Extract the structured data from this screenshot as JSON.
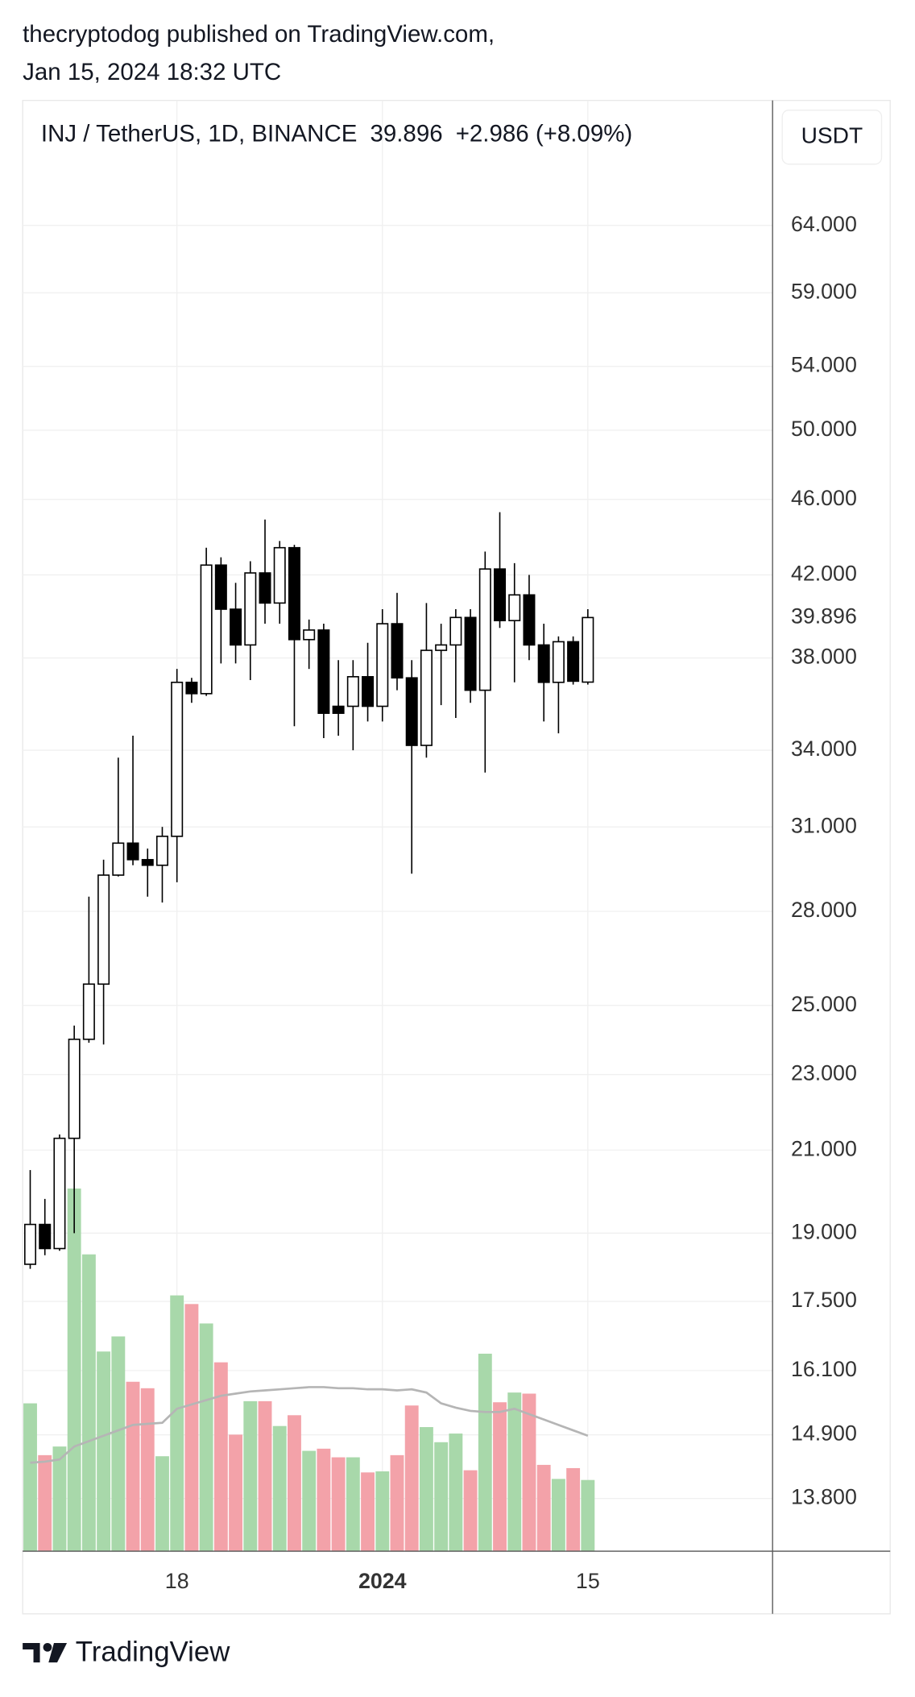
{
  "header": {
    "author_line": "thecryptodog published on TradingView.com,",
    "date": "Jan 15, 2024 18:32 UTC"
  },
  "chart_data": {
    "type": "candlestick",
    "symbol": "INJ / TetherUS, 1D, BINANCE",
    "change": "+2.986 (+8.09%)",
    "currency": "USDT",
    "categories": [
      null,
      null,
      null,
      null,
      null,
      null,
      null,
      null,
      null,
      null,
      "18",
      null,
      null,
      null,
      null,
      null,
      null,
      null,
      null,
      null,
      null,
      null,
      null,
      null,
      "2024",
      null,
      null,
      null,
      null,
      null,
      null,
      null,
      null,
      null,
      null,
      null,
      null,
      null,
      "15"
    ],
    "open": [
      18.3,
      19.2,
      18.65,
      21.3,
      24.0,
      25.65,
      29.25,
      30.4,
      29.8,
      29.6,
      30.65,
      36.9,
      36.4,
      42.5,
      40.3,
      38.6,
      42.1,
      40.6,
      43.4,
      38.85,
      39.3,
      35.85,
      35.85,
      37.15,
      35.85,
      39.6,
      37.1,
      34.2,
      38.35,
      38.6,
      39.9,
      36.55,
      42.3,
      39.75,
      41.0,
      38.6,
      36.9,
      38.75,
      36.91
    ],
    "high": [
      20.5,
      19.8,
      21.4,
      24.4,
      28.5,
      29.8,
      33.7,
      34.6,
      30.2,
      31.0,
      37.5,
      37.1,
      43.4,
      42.9,
      41.6,
      42.7,
      44.9,
      43.75,
      43.55,
      39.8,
      39.6,
      37.9,
      37.9,
      38.7,
      40.3,
      41.1,
      37.9,
      40.6,
      39.6,
      40.3,
      40.3,
      43.2,
      45.3,
      42.6,
      42.0,
      39.6,
      39.0,
      39.0,
      40.3
    ],
    "low": [
      18.2,
      18.5,
      18.6,
      19.0,
      23.9,
      23.85,
      29.2,
      29.6,
      28.5,
      28.3,
      29.0,
      36.0,
      36.3,
      37.75,
      37.75,
      37.0,
      39.6,
      39.6,
      35.0,
      37.5,
      34.5,
      34.6,
      34.0,
      35.2,
      35.2,
      36.55,
      29.3,
      33.7,
      35.9,
      35.35,
      36.0,
      33.1,
      39.4,
      36.9,
      37.9,
      35.2,
      34.7,
      36.8,
      36.8
    ],
    "close": [
      19.2,
      18.65,
      21.3,
      24.0,
      25.65,
      29.25,
      30.4,
      29.8,
      29.6,
      30.65,
      36.9,
      36.4,
      42.5,
      40.3,
      38.6,
      42.1,
      40.6,
      43.4,
      38.85,
      39.3,
      35.55,
      35.55,
      37.15,
      35.85,
      39.6,
      37.1,
      34.2,
      38.35,
      38.6,
      39.9,
      36.55,
      42.3,
      39.75,
      41.0,
      38.6,
      36.9,
      38.75,
      36.95,
      39.896
    ],
    "volume": [
      137,
      89,
      97,
      336,
      275,
      185,
      199,
      157,
      151,
      88,
      237,
      229,
      211,
      175,
      108,
      139,
      139,
      116,
      126,
      93,
      95,
      87,
      87,
      73,
      74,
      89,
      135,
      115,
      101,
      109,
      75,
      183,
      138,
      147,
      146,
      80,
      67,
      77,
      66
    ],
    "volume_ma": [
      82,
      83,
      85,
      97,
      102,
      107,
      112,
      117,
      118,
      119,
      132,
      136,
      140,
      144,
      146,
      148,
      149,
      150,
      151,
      152,
      152,
      151,
      151,
      150,
      150,
      149,
      150,
      147,
      137,
      133,
      130,
      129,
      129,
      132,
      127,
      122,
      117,
      112,
      107
    ],
    "volume_lim": [
      0,
      400
    ],
    "ylim": [
      12.95,
      74.4
    ],
    "log_scale": true,
    "grid": true,
    "yticks": [
      {
        "value": 64,
        "label": "64.000"
      },
      {
        "value": 59,
        "label": "59.000"
      },
      {
        "value": 54,
        "label": "54.000"
      },
      {
        "value": 50,
        "label": "50.000"
      },
      {
        "value": 46,
        "label": "46.000"
      },
      {
        "value": 42,
        "label": "42.000"
      },
      {
        "value": 38,
        "label": "38.000"
      },
      {
        "value": 34,
        "label": "34.000"
      },
      {
        "value": 31,
        "label": "31.000"
      },
      {
        "value": 28,
        "label": "28.000"
      },
      {
        "value": 25,
        "label": "25.000"
      },
      {
        "value": 23,
        "label": "23.000"
      },
      {
        "value": 21,
        "label": "21.000"
      },
      {
        "value": 19,
        "label": "19.000"
      },
      {
        "value": 17.5,
        "label": "17.500"
      },
      {
        "value": 16.1,
        "label": "16.100"
      },
      {
        "value": 14.9,
        "label": "14.900"
      },
      {
        "value": 13.8,
        "label": "13.800"
      }
    ],
    "up_color": "#ffffff",
    "down_color": "#000000",
    "candle_outline": "#000000",
    "volume_up_color": "#a8d8aa",
    "volume_down_color": "#f3a2a9",
    "volume_ma_color": "#b5b5b5"
  },
  "footer": {
    "brand": "TradingView"
  }
}
